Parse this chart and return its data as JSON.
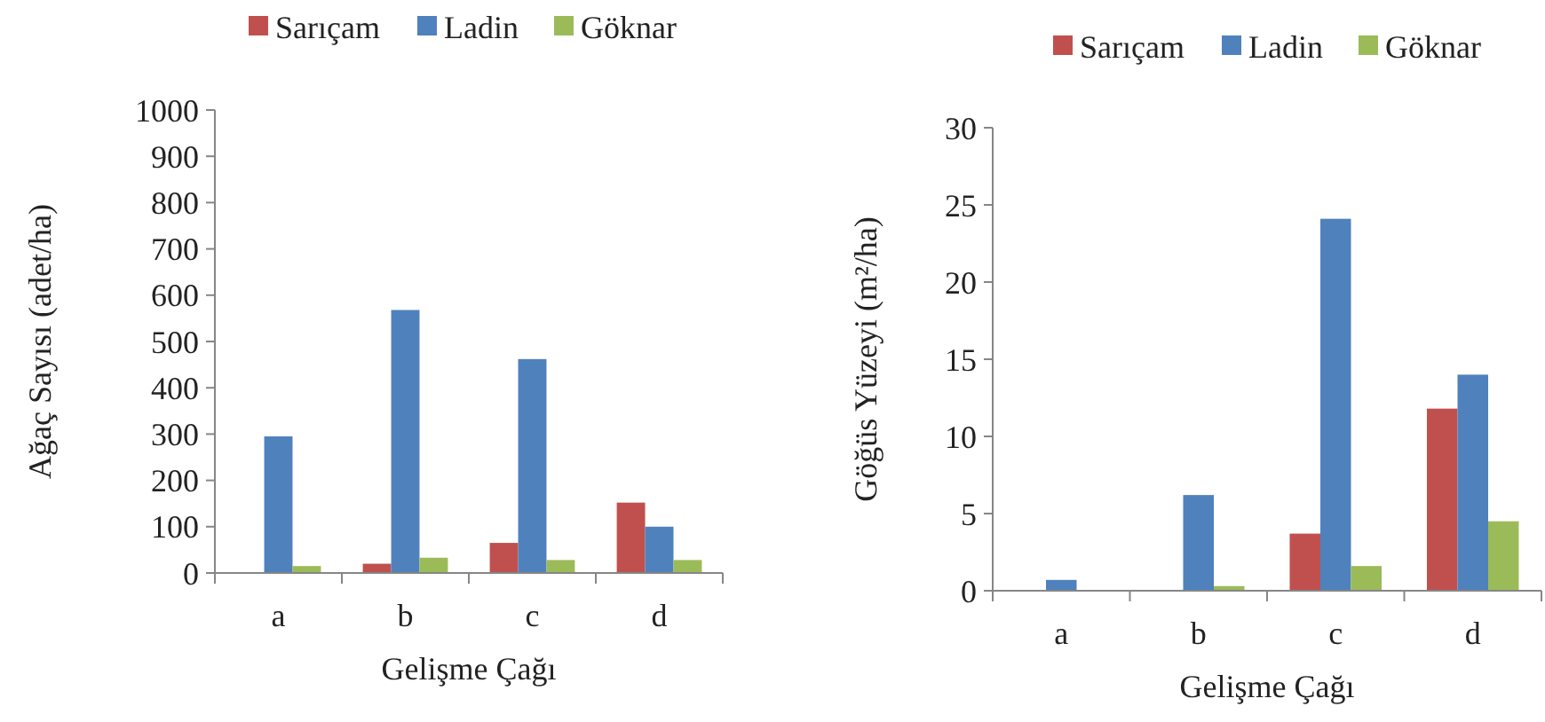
{
  "chart_data": [
    {
      "type": "bar",
      "ylabel": "Ağaç Sayısı (adet/ha)",
      "xlabel": "Gelişme  Çağı",
      "categories": [
        "a",
        "b",
        "c",
        "d"
      ],
      "series": [
        {
          "name": "Sarıçam",
          "color": "#c0504d",
          "values": [
            0,
            20,
            65,
            152
          ]
        },
        {
          "name": "Ladin",
          "color": "#4f81bd",
          "values": [
            295,
            568,
            462,
            100
          ]
        },
        {
          "name": "Göknar",
          "color": "#9bbb59",
          "values": [
            15,
            33,
            28,
            28
          ]
        }
      ],
      "ylim": [
        0,
        1000
      ],
      "yticks": [
        0,
        100,
        200,
        300,
        400,
        500,
        600,
        700,
        800,
        900,
        1000
      ],
      "grid": false,
      "legend": "top"
    },
    {
      "type": "bar",
      "ylabel": "Göğüs Yüzeyi (m²/ha)",
      "xlabel": "Gelişme  Çağı",
      "categories": [
        "a",
        "b",
        "c",
        "d"
      ],
      "series": [
        {
          "name": "Sarıçam",
          "color": "#c0504d",
          "values": [
            null,
            null,
            3.7,
            11.8
          ]
        },
        {
          "name": "Ladin",
          "color": "#4f81bd",
          "values": [
            0.7,
            6.2,
            24.1,
            14.0
          ]
        },
        {
          "name": "Göknar",
          "color": "#9bbb59",
          "values": [
            null,
            0.3,
            1.6,
            4.5
          ]
        }
      ],
      "ylim": [
        0,
        30
      ],
      "yticks": [
        0,
        5,
        10,
        15,
        20,
        25,
        30
      ],
      "grid": false,
      "legend": "top right"
    }
  ]
}
